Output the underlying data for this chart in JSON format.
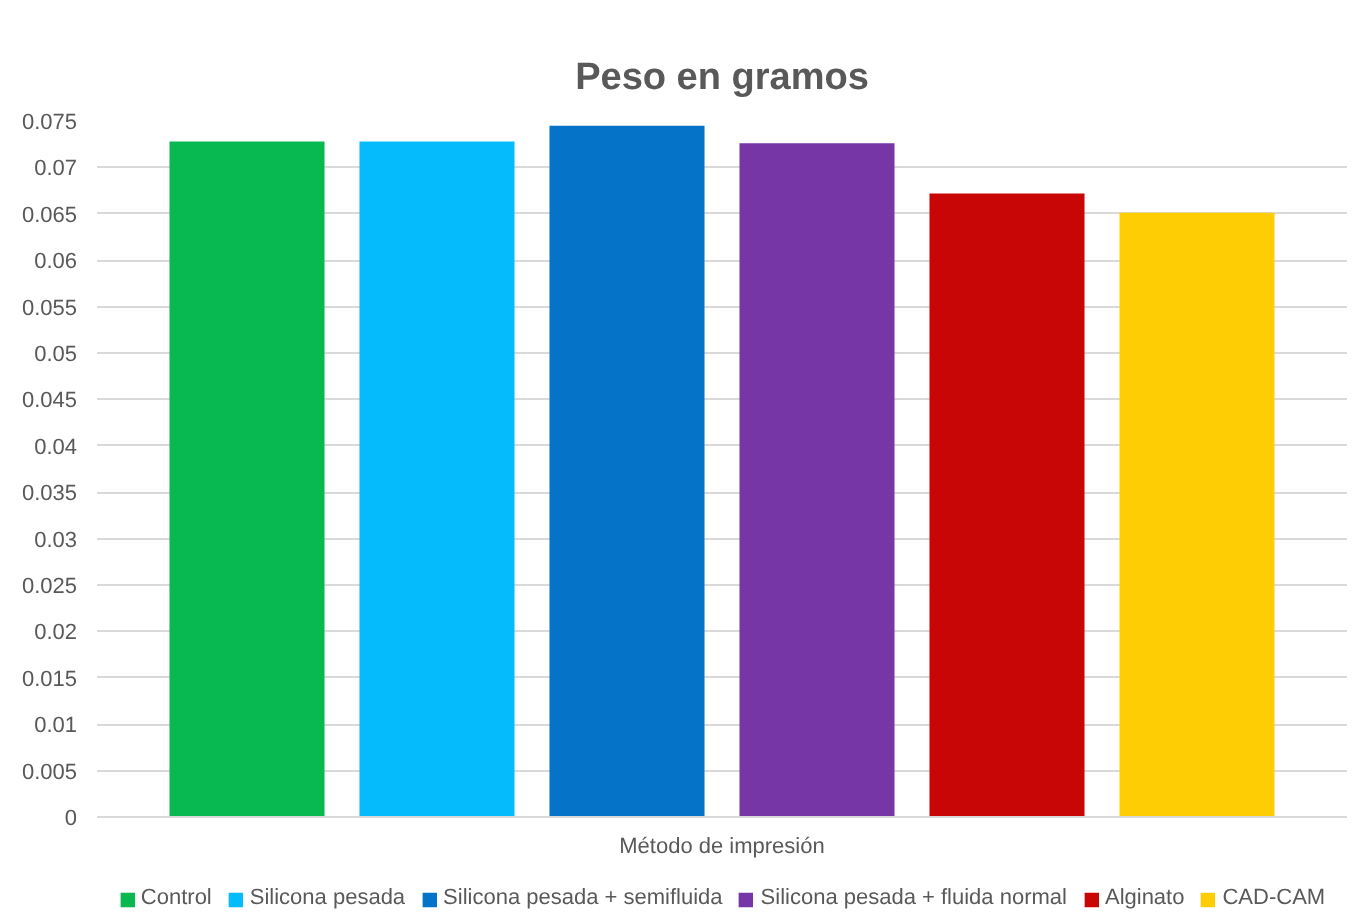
{
  "chart_data": {
    "type": "bar",
    "title": "Peso en gramos",
    "categories": [
      "Método de impresión"
    ],
    "series": [
      {
        "name": "Control",
        "color": "#08b850",
        "values": [
          0.0728
        ]
      },
      {
        "name": "Silicona pesada",
        "color": "#05bbfb",
        "values": [
          0.0728
        ]
      },
      {
        "name": "Silicona pesada + semifluida",
        "color": "#0573c7",
        "values": [
          0.0745
        ]
      },
      {
        "name": "Silicona pesada + fluida normal",
        "color": "#7636a6",
        "values": [
          0.0726
        ]
      },
      {
        "name": "Alginato",
        "color": "#c90606",
        "values": [
          0.0672
        ]
      },
      {
        "name": "CAD-CAM",
        "color": "#fecd04",
        "values": [
          0.0651
        ]
      }
    ],
    "ylim": [
      0,
      0.075
    ],
    "yticks": [
      0,
      0.005,
      0.01,
      0.015,
      0.02,
      0.025,
      0.03,
      0.035,
      0.04,
      0.045,
      0.05,
      0.055,
      0.06,
      0.065,
      0.07,
      0.075
    ],
    "grid": "y",
    "legend": "bottom"
  }
}
